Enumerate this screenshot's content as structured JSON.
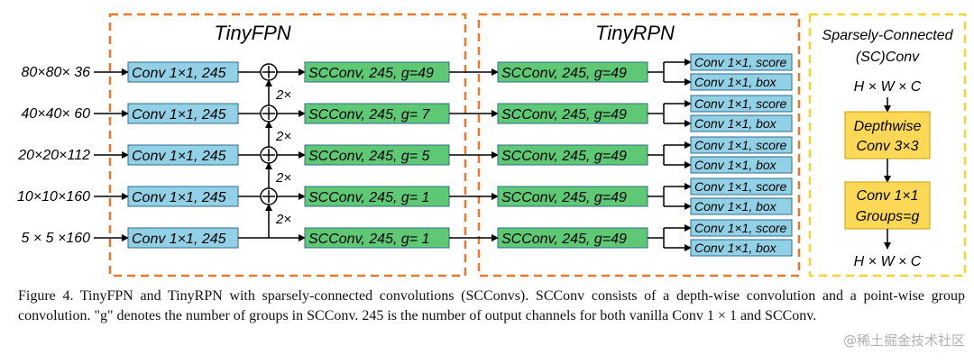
{
  "diagram": {
    "sections": {
      "fpn_title": "TinyFPN",
      "rpn_title": "TinyRPN",
      "sc_title_1": "Sparsely-Connected",
      "sc_title_2": "(SC)Conv"
    },
    "inputs": [
      "80×80× 36",
      "40×40× 60",
      "20×20×112",
      "10×10×160",
      "5 × 5 ×160"
    ],
    "conv_label": "Conv 1×1, 245",
    "fpn_scconv": [
      "SCConv, 245, g=49",
      "SCConv, 245, g= 7",
      "SCConv, 245, g= 5",
      "SCConv, 245, g= 1",
      "SCConv, 245, g= 1"
    ],
    "upsample": [
      "2×",
      "2×",
      "2×",
      "2×"
    ],
    "rpn_scconv": "SCConv, 245, g=49",
    "head_score": "Conv 1×1, score",
    "head_box": "Conv 1×1, box",
    "sc": {
      "in_label": "H × W × C",
      "depthwise_1": "Depthwise",
      "depthwise_2": "Conv 3×3",
      "group_1": "Conv 1×1",
      "group_2": "Groups=g",
      "out_label": "H × W × C"
    },
    "colors": {
      "conv_fill": "#92d0e6",
      "scconv_fill": "#5fc874",
      "sc_fill": "#fcd856",
      "dash_orange": "#e8782b",
      "dash_yellow": "#f2d52e"
    }
  },
  "caption": {
    "text": "Figure 4. TinyFPN and TinyRPN with sparsely-connected convolutions (SCConvs). SCConv consists of a depth-wise convolution and a point-wise group convolution. \"g\" denotes the number of groups in SCConv. 245 is the number of output channels for both vanilla Conv 1 × 1 and SCConv."
  },
  "watermark": "@稀土掘金技术社区"
}
